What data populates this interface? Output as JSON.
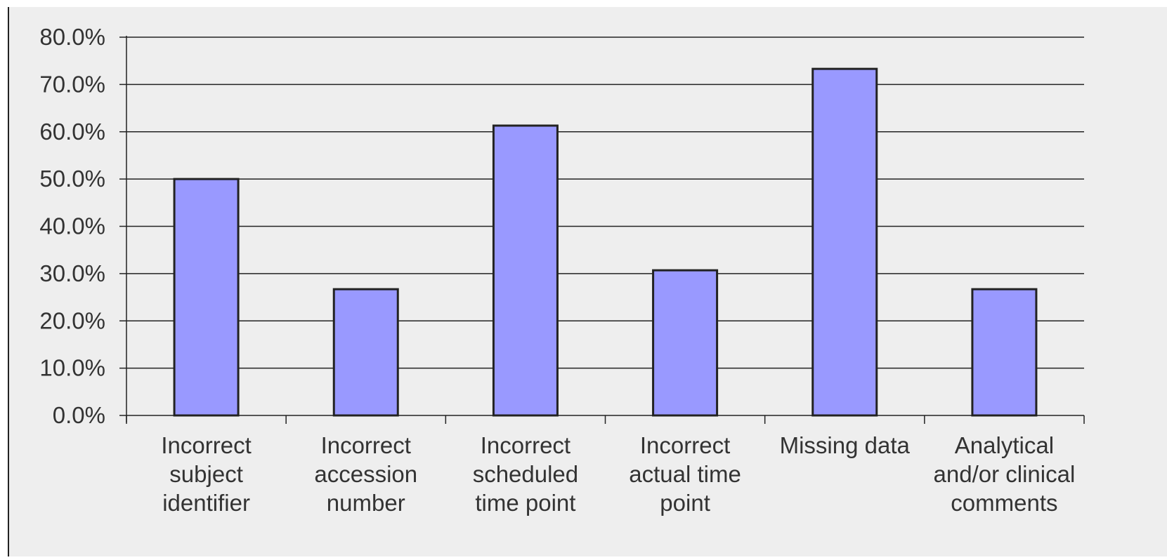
{
  "colors": {
    "plot_background": "#eeeeee",
    "bar_fill": "#9999ff",
    "bar_stroke": "#222222",
    "grid": "#222222",
    "text": "#333333"
  },
  "chart_data": {
    "type": "bar",
    "categories": [
      [
        "Incorrect",
        "subject",
        "identifier"
      ],
      [
        "Incorrect",
        "accession",
        "number"
      ],
      [
        "Incorrect",
        "scheduled",
        "time point"
      ],
      [
        "Incorrect",
        "actual time",
        "point"
      ],
      [
        "Missing data"
      ],
      [
        "Analytical",
        "and/or clinical",
        "comments"
      ]
    ],
    "values": [
      0.5,
      0.267,
      0.613,
      0.307,
      0.733,
      0.267
    ],
    "ylim": [
      0,
      0.8
    ],
    "yticks": [
      0,
      0.1,
      0.2,
      0.3,
      0.4,
      0.5,
      0.6,
      0.7,
      0.8
    ],
    "ytick_labels": [
      "0.0%",
      "10.0%",
      "20.0%",
      "30.0%",
      "40.0%",
      "50.0%",
      "60.0%",
      "70.0%",
      "80.0%"
    ],
    "title": "",
    "xlabel": "",
    "ylabel": "",
    "grid": "horizontal",
    "legend": "none"
  }
}
